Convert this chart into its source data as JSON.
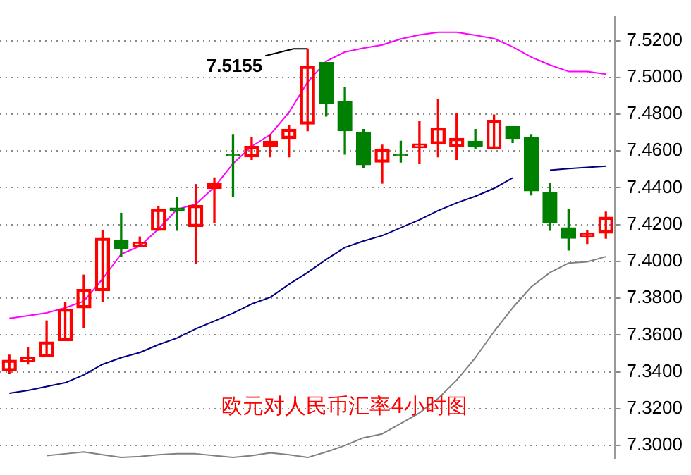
{
  "chart_data": {
    "type": "candlestick",
    "title": "欧元对人民币汇率4小时图",
    "categories": [
      null,
      null,
      null,
      null,
      null,
      null,
      null,
      null,
      null,
      null,
      null,
      null,
      null,
      null,
      null,
      null,
      null,
      null,
      null,
      null,
      null,
      null,
      null,
      null,
      null,
      null,
      null,
      null,
      null,
      null,
      null,
      null,
      null
    ],
    "ohlc": [
      [
        7.3406,
        7.3491,
        7.3392,
        7.3463
      ],
      [
        7.3456,
        7.3534,
        7.3442,
        7.3477
      ],
      [
        7.3484,
        7.3677,
        7.3484,
        7.3563
      ],
      [
        7.357,
        7.3777,
        7.357,
        7.3741
      ],
      [
        7.3748,
        7.3926,
        7.3641,
        7.3848
      ],
      [
        7.3841,
        7.4169,
        7.3784,
        7.4126
      ],
      [
        7.4112,
        7.4262,
        7.4026,
        7.4069
      ],
      [
        7.4083,
        7.4133,
        7.4083,
        7.4105
      ],
      [
        7.4169,
        7.4297,
        7.4169,
        7.4283
      ],
      [
        7.429,
        7.4347,
        7.4169,
        7.4276
      ],
      [
        7.419,
        7.4418,
        7.3989,
        7.4304
      ],
      [
        7.4397,
        7.4454,
        7.4212,
        7.4425
      ],
      [
        7.4582,
        7.4689,
        7.4354,
        7.4575
      ],
      [
        7.4568,
        7.4675,
        7.4554,
        7.4625
      ],
      [
        7.4625,
        7.4689,
        7.4568,
        7.4653
      ],
      [
        7.4668,
        7.4739,
        7.4568,
        7.4718
      ],
      [
        7.4746,
        7.5155,
        7.471,
        7.506
      ],
      [
        7.5081,
        7.5081,
        7.4789,
        7.486
      ],
      [
        7.4867,
        7.4945,
        7.4582,
        7.471
      ],
      [
        7.4703,
        7.4717,
        7.4511,
        7.4525
      ],
      [
        7.4539,
        7.4632,
        7.4425,
        7.4611
      ],
      [
        7.4582,
        7.4653,
        7.4539,
        7.4575
      ],
      [
        7.4618,
        7.476,
        7.4532,
        7.4639
      ],
      [
        7.4639,
        7.4881,
        7.4568,
        7.4725
      ],
      [
        7.4625,
        7.4803,
        7.4554,
        7.4668
      ],
      [
        7.4653,
        7.4717,
        7.4611,
        7.4625
      ],
      [
        7.4611,
        7.4796,
        7.4611,
        7.4767
      ],
      [
        7.4732,
        7.4732,
        7.4646,
        7.4668
      ],
      [
        7.4675,
        7.4689,
        7.4361,
        7.4383
      ],
      [
        7.4375,
        7.4425,
        7.4169,
        7.4211
      ],
      [
        7.4183,
        7.4283,
        7.4062,
        7.4126
      ],
      [
        7.4133,
        7.4169,
        7.4097,
        7.4154
      ],
      [
        7.4154,
        7.4268,
        7.4126,
        7.424
      ]
    ],
    "colors": [
      "#ff0000",
      "#ff0000",
      "#ff0000",
      "#ff0000",
      "#ff0000",
      "#ff0000",
      "#008000",
      "#ff0000",
      "#ff0000",
      "#008000",
      "#ff0000",
      "#ff0000",
      "#008000",
      "#ff0000",
      "#ff0000",
      "#ff0000",
      "#ff0000",
      "#008000",
      "#008000",
      "#008000",
      "#ff0000",
      "#008000",
      "#ff0000",
      "#ff0000",
      "#ff0000",
      "#008000",
      "#ff0000",
      "#008000",
      "#008000",
      "#008000",
      "#008000",
      "#ff0000",
      "#ff0000"
    ],
    "series": [
      {
        "type": "line",
        "color": "#ff00ff",
        "values": [
          7.3691,
          7.3705,
          7.372,
          7.3748,
          7.3784,
          7.3905,
          7.404,
          7.4083,
          7.4176,
          7.4283,
          7.4311,
          7.4404,
          7.4532,
          7.4625,
          7.4689,
          7.481,
          7.4974,
          7.5088,
          7.5138,
          7.5159,
          7.5176,
          7.5209,
          7.5231,
          7.5245,
          7.5245,
          7.5229,
          7.5211,
          7.5166,
          7.511,
          7.5067,
          7.5032,
          7.5032,
          7.5017
        ]
      },
      {
        "type": "line",
        "color": "#000080",
        "values": [
          7.3284,
          7.3299,
          7.332,
          7.3341,
          7.3384,
          7.3441,
          7.3477,
          7.3505,
          7.3548,
          7.3584,
          7.3634,
          7.3676,
          7.3719,
          7.3769,
          7.3805,
          7.3876,
          7.394,
          7.4011,
          7.4076,
          7.4111,
          7.414,
          7.4183,
          7.4226,
          7.4276,
          7.4318,
          7.4354,
          7.4397,
          7.4454,
          null,
          7.4496,
          7.4504,
          7.4511,
          7.4518
        ]
      },
      {
        "type": "line",
        "color": "#808080",
        "values": [
          null,
          null,
          7.2945,
          7.2955,
          7.2965,
          7.295,
          7.2935,
          7.294,
          7.295,
          7.2955,
          7.2955,
          7.2945,
          7.2935,
          7.2945,
          7.296,
          7.295,
          7.2935,
          7.2965,
          7.3,
          7.3042,
          7.3063,
          7.312,
          7.3177,
          7.3255,
          7.3355,
          7.3477,
          7.3619,
          7.3748,
          7.3862,
          7.394,
          7.3991,
          7.3998,
          7.4026
        ]
      }
    ],
    "ylim": [
      7.293,
      7.533
    ],
    "yticks": [
      {
        "value": 7.3,
        "label": "7.3000"
      },
      {
        "value": 7.32,
        "label": "7.3200"
      },
      {
        "value": 7.34,
        "label": "7.3400"
      },
      {
        "value": 7.36,
        "label": "7.3600"
      },
      {
        "value": 7.38,
        "label": "7.3800"
      },
      {
        "value": 7.4,
        "label": "7.4000"
      },
      {
        "value": 7.42,
        "label": "7.4200"
      },
      {
        "value": 7.44,
        "label": "7.4400"
      },
      {
        "value": 7.46,
        "label": "7.4600"
      },
      {
        "value": 7.48,
        "label": "7.4800"
      },
      {
        "value": 7.5,
        "label": "7.5000"
      },
      {
        "value": 7.52,
        "label": "7.5200"
      }
    ],
    "grid": "y",
    "tick_labels": "y",
    "annotations": [
      "7.5155"
    ]
  }
}
